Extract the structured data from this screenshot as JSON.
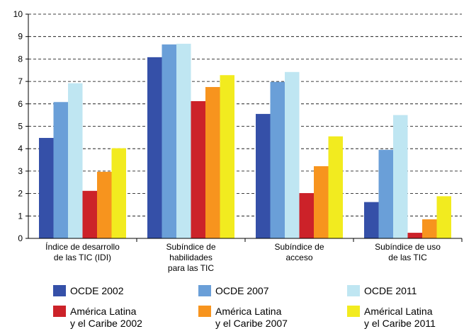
{
  "chart_data": {
    "type": "bar",
    "categories": [
      "Índice de desarrollo\nde las TIC (IDI)",
      "Subíndice de\nhabilidades\npara las TIC",
      "Subíndice de\nacceso",
      "Subíndice de uso\nde las TIC"
    ],
    "series": [
      {
        "name": "OCDE 2002",
        "color": "#3550a8",
        "values": [
          4.48,
          8.08,
          5.55,
          1.62
        ]
      },
      {
        "name": "OCDE 2007",
        "color": "#6a9fd8",
        "values": [
          6.08,
          8.65,
          6.98,
          3.95
        ]
      },
      {
        "name": "OCDE 2011",
        "color": "#bfe6f2",
        "values": [
          6.92,
          8.68,
          7.42,
          5.5
        ]
      },
      {
        "name": "América Latina\ny el Caribe 2002",
        "color": "#cc2229",
        "values": [
          2.12,
          6.12,
          2.02,
          0.25
        ]
      },
      {
        "name": "América Latina\ny el Caribe 2007",
        "color": "#f7941e",
        "values": [
          2.97,
          6.75,
          3.22,
          0.85
        ]
      },
      {
        "name": "Américal Latina\ny el Caribe 2011",
        "color": "#f2eb1f",
        "values": [
          4.02,
          7.28,
          4.55,
          1.88
        ]
      }
    ],
    "yticks": [
      "0",
      "1",
      "2",
      "3",
      "4",
      "5",
      "6",
      "7",
      "8",
      "9",
      "10"
    ],
    "ylim": [
      0,
      10
    ],
    "grid": "horizontal-dashed",
    "legend_placement": "bottom"
  }
}
